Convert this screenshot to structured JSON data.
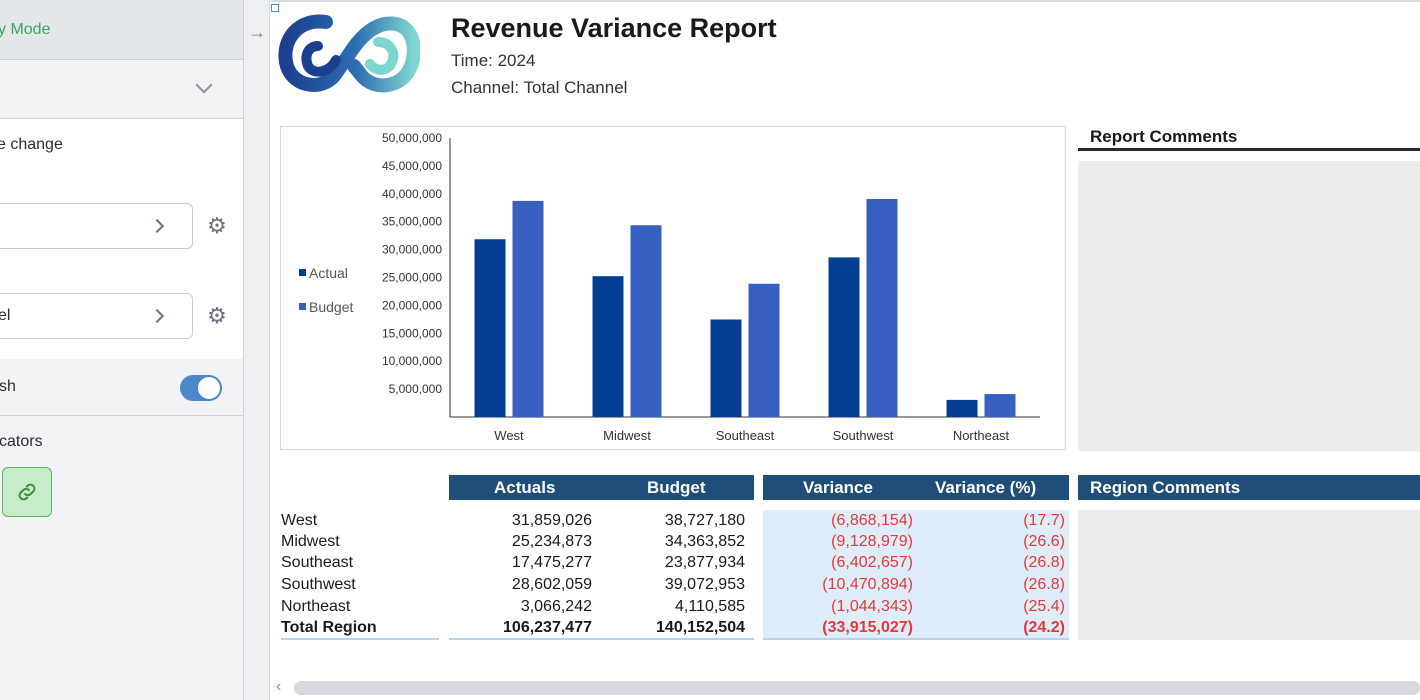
{
  "left_panel": {
    "mode_text": "y Mode",
    "change_text": "e change",
    "field1_value": "",
    "field2_value": "el",
    "refresh_label": "sh",
    "indicators_label": "cators"
  },
  "report": {
    "title": "Revenue Variance Report",
    "time_line": "Time: 2024",
    "channel_line": "Channel: Total Channel",
    "report_comments_title": "Report Comments",
    "region_comments_title": "Region Comments"
  },
  "colors": {
    "actual": "#023f93",
    "budget": "#365fc0",
    "header": "#1f4e79",
    "negative": "#e53935"
  },
  "chart_data": {
    "type": "bar",
    "categories": [
      "West",
      "Midwest",
      "Southeast",
      "Southwest",
      "Northeast"
    ],
    "series": [
      {
        "name": "Actual",
        "values": [
          31859026,
          25234873,
          17475277,
          28602059,
          3066242
        ]
      },
      {
        "name": "Budget",
        "values": [
          38727180,
          34363852,
          23877934,
          39072953,
          4110585
        ]
      }
    ],
    "yticks": [
      "5,000,000",
      "10,000,000",
      "15,000,000",
      "20,000,000",
      "25,000,000",
      "30,000,000",
      "35,000,000",
      "40,000,000",
      "45,000,000",
      "50,000,000"
    ],
    "ylim": [
      0,
      50000000
    ],
    "legend": "left",
    "grid": false,
    "title": "",
    "xlabel": "",
    "ylabel": ""
  },
  "table": {
    "headers": {
      "actuals": "Actuals",
      "budget": "Budget",
      "variance": "Variance",
      "variance_pct": "Variance (%)"
    },
    "rows": [
      {
        "region": "West",
        "actuals": "31,859,026",
        "budget": "38,727,180",
        "variance": "(6,868,154)",
        "variance_pct": "(17.7)"
      },
      {
        "region": "Midwest",
        "actuals": "25,234,873",
        "budget": "34,363,852",
        "variance": "(9,128,979)",
        "variance_pct": "(26.6)"
      },
      {
        "region": "Southeast",
        "actuals": "17,475,277",
        "budget": "23,877,934",
        "variance": "(6,402,657)",
        "variance_pct": "(26.8)"
      },
      {
        "region": "Southwest",
        "actuals": "28,602,059",
        "budget": "39,072,953",
        "variance": "(10,470,894)",
        "variance_pct": "(26.8)"
      },
      {
        "region": "Northeast",
        "actuals": "3,066,242",
        "budget": "4,110,585",
        "variance": "(1,044,343)",
        "variance_pct": "(25.4)"
      }
    ],
    "total": {
      "region": "Total Region",
      "actuals": "106,237,477",
      "budget": "140,152,504",
      "variance": "(33,915,027)",
      "variance_pct": "(24.2)"
    }
  }
}
